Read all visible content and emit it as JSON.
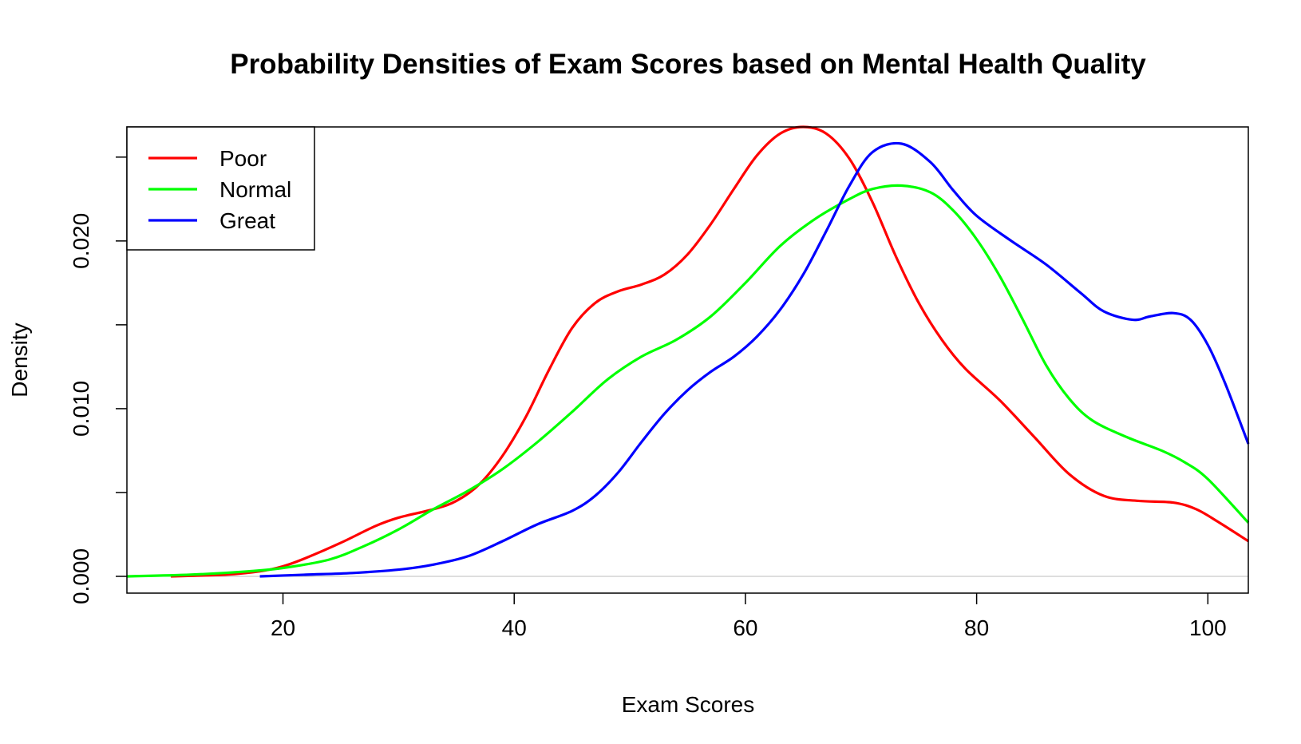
{
  "chart_data": {
    "type": "line",
    "title": "Probability Densities of Exam Scores based on Mental Health Quality",
    "xlabel": "Exam Scores",
    "ylabel": "Density",
    "xlim": [
      6.5,
      103.5
    ],
    "ylim": [
      -0.001,
      0.0268
    ],
    "x_ticks": [
      20,
      40,
      60,
      80,
      100
    ],
    "x_tick_labels": [
      "20",
      "40",
      "60",
      "80",
      "100"
    ],
    "y_ticks": [
      0.0,
      0.005,
      0.01,
      0.015,
      0.02,
      0.025
    ],
    "y_tick_labels": [
      "0.000",
      "",
      "0.010",
      "",
      "0.020",
      ""
    ],
    "baseline": 0,
    "legend_position": "top-left",
    "series": [
      {
        "name": "Poor",
        "color": "#ff0000",
        "points": [
          [
            10.3,
            0.0
          ],
          [
            15,
            0.0001
          ],
          [
            18,
            0.0003
          ],
          [
            20,
            0.0006
          ],
          [
            22,
            0.0011
          ],
          [
            25,
            0.002
          ],
          [
            28,
            0.003
          ],
          [
            30,
            0.0035
          ],
          [
            33,
            0.004
          ],
          [
            35,
            0.0045
          ],
          [
            37,
            0.0055
          ],
          [
            39,
            0.0072
          ],
          [
            41,
            0.0095
          ],
          [
            43,
            0.0123
          ],
          [
            45,
            0.0148
          ],
          [
            47,
            0.0163
          ],
          [
            49,
            0.017
          ],
          [
            51,
            0.0174
          ],
          [
            53,
            0.018
          ],
          [
            55,
            0.0192
          ],
          [
            57,
            0.021
          ],
          [
            59,
            0.0231
          ],
          [
            61,
            0.0251
          ],
          [
            63,
            0.0264
          ],
          [
            65,
            0.0268
          ],
          [
            67,
            0.0264
          ],
          [
            69,
            0.0249
          ],
          [
            71,
            0.0223
          ],
          [
            73,
            0.0191
          ],
          [
            75,
            0.0163
          ],
          [
            77,
            0.0141
          ],
          [
            79,
            0.0124
          ],
          [
            82,
            0.0105
          ],
          [
            85,
            0.0083
          ],
          [
            88,
            0.0061
          ],
          [
            91,
            0.0048
          ],
          [
            94,
            0.0045
          ],
          [
            97,
            0.0044
          ],
          [
            99,
            0.004
          ],
          [
            101,
            0.0032
          ],
          [
            103.5,
            0.0021
          ]
        ]
      },
      {
        "name": "Normal",
        "color": "#00ff00",
        "points": [
          [
            6.5,
            0.0
          ],
          [
            12,
            0.0001
          ],
          [
            17,
            0.0003
          ],
          [
            20,
            0.0005
          ],
          [
            24,
            0.001
          ],
          [
            27,
            0.0018
          ],
          [
            30,
            0.0028
          ],
          [
            33,
            0.004
          ],
          [
            36,
            0.0051
          ],
          [
            39,
            0.0064
          ],
          [
            42,
            0.008
          ],
          [
            45,
            0.0098
          ],
          [
            48,
            0.0117
          ],
          [
            51,
            0.0131
          ],
          [
            54,
            0.0141
          ],
          [
            57,
            0.0155
          ],
          [
            60,
            0.0175
          ],
          [
            63,
            0.0197
          ],
          [
            66,
            0.0213
          ],
          [
            69,
            0.0225
          ],
          [
            71,
            0.0231
          ],
          [
            73.5,
            0.0233
          ],
          [
            76,
            0.0229
          ],
          [
            78,
            0.0218
          ],
          [
            80,
            0.0201
          ],
          [
            82,
            0.0179
          ],
          [
            84,
            0.0153
          ],
          [
            86,
            0.0126
          ],
          [
            88,
            0.0106
          ],
          [
            90,
            0.0093
          ],
          [
            93,
            0.0083
          ],
          [
            96,
            0.0075
          ],
          [
            98,
            0.0068
          ],
          [
            100,
            0.0058
          ],
          [
            103.5,
            0.0032
          ]
        ]
      },
      {
        "name": "Great",
        "color": "#0000ff",
        "points": [
          [
            18,
            0.0
          ],
          [
            22,
            0.0001
          ],
          [
            26,
            0.0002
          ],
          [
            30,
            0.0004
          ],
          [
            33,
            0.0007
          ],
          [
            36,
            0.0012
          ],
          [
            39,
            0.0021
          ],
          [
            42,
            0.0031
          ],
          [
            45,
            0.0039
          ],
          [
            47,
            0.0048
          ],
          [
            49,
            0.0062
          ],
          [
            51,
            0.008
          ],
          [
            53,
            0.0097
          ],
          [
            55,
            0.0111
          ],
          [
            57,
            0.0122
          ],
          [
            59,
            0.0131
          ],
          [
            61,
            0.0143
          ],
          [
            63,
            0.0159
          ],
          [
            65,
            0.018
          ],
          [
            67,
            0.0206
          ],
          [
            69,
            0.0233
          ],
          [
            71,
            0.0253
          ],
          [
            73.5,
            0.0258
          ],
          [
            76,
            0.0247
          ],
          [
            78,
            0.023
          ],
          [
            80,
            0.0215
          ],
          [
            83,
            0.02
          ],
          [
            86,
            0.0186
          ],
          [
            89,
            0.0169
          ],
          [
            91,
            0.0158
          ],
          [
            93.5,
            0.0153
          ],
          [
            95,
            0.0155
          ],
          [
            97,
            0.0157
          ],
          [
            98.5,
            0.0153
          ],
          [
            100,
            0.0138
          ],
          [
            101.5,
            0.0115
          ],
          [
            103.5,
            0.0079
          ]
        ]
      }
    ]
  }
}
